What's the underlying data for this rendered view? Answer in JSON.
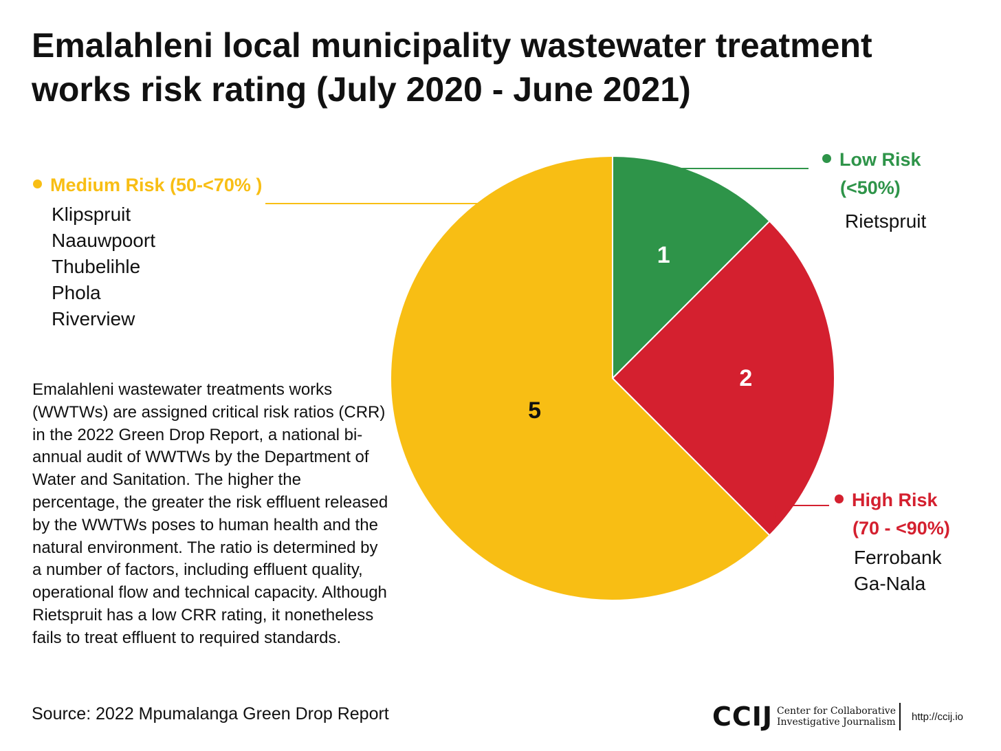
{
  "chart_data": {
    "type": "pie",
    "title": "Emalahleni local municipality wastewater treatment works risk rating (July 2020 - June 2021)",
    "slices": [
      {
        "label": "Low Risk (<50%)",
        "label_lines": [
          "Low Risk",
          "(<50%)"
        ],
        "value": 1,
        "color": "#2E9449",
        "label_color": "#FFFFFF",
        "items": [
          "Rietspruit"
        ]
      },
      {
        "label": "High Risk (70 - <90%)",
        "label_lines": [
          "High Risk",
          "(70 - <90%)"
        ],
        "value": 2,
        "color": "#D4202F",
        "label_color": "#FFFFFF",
        "items": [
          "Ferrobank",
          "Ga-Nala"
        ]
      },
      {
        "label": "Medium Risk (50-<70% )",
        "label_lines": [
          "Medium Risk (50-<70% )"
        ],
        "value": 5,
        "color": "#F8BE14",
        "label_color": "#111111",
        "items": [
          "Klipspruit",
          "Naauwpoort",
          "Thubelihle",
          "Phola",
          "Riverview"
        ]
      }
    ],
    "start_angle": "12 o'clock, clockwise"
  },
  "note": "Emalahleni wastewater treatments works (WWTWs) are assigned critical risk ratios (CRR) in the 2022 Green Drop Report, a national bi-annual audit of WWTWs by the Department of Water and Sanitation. The higher the percentage, the greater the risk effluent released by the WWTWs poses to human health and the natural environment. The ratio is determined by a number of factors, including effluent quality, operational flow and technical capacity. Although Rietspruit has a low CRR rating, it nonetheless fails to treat effluent to required standards.",
  "source": "Source: 2022 Mpumalanga Green Drop Report",
  "footer": {
    "logo_mark": "CCIJ",
    "logo_text_1": "Center for Collaborative",
    "logo_text_2": "Investigative Journalism",
    "url": "http://ccij.io"
  }
}
